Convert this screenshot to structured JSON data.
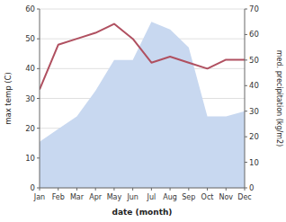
{
  "chart_data": {
    "type": "line",
    "categories": [
      "Jan",
      "Feb",
      "Mar",
      "Apr",
      "May",
      "Jun",
      "Jul",
      "Aug",
      "Sep",
      "Oct",
      "Nov",
      "Dec"
    ],
    "series": [
      {
        "type": "line",
        "color": "#b05060",
        "values": [
          33,
          48,
          50,
          52,
          55,
          50,
          42,
          44,
          42,
          40,
          43,
          43
        ]
      },
      {
        "type": "area",
        "color": "#c8d8f0",
        "axis": "y2",
        "values": [
          18,
          23,
          28,
          38,
          50,
          50,
          65,
          62,
          55,
          28,
          28,
          30
        ]
      }
    ],
    "xlabel": "date (month)",
    "ylabel": "max temp (C)",
    "y2label": "med. precipitation (kg/m2)",
    "ylim": [
      0,
      60
    ],
    "yticks": [
      0,
      10,
      20,
      30,
      40,
      50,
      60
    ],
    "y2lim": [
      0,
      70
    ],
    "y2ticks": [
      0,
      10,
      20,
      30,
      40,
      50,
      60,
      70
    ],
    "grid": true
  }
}
